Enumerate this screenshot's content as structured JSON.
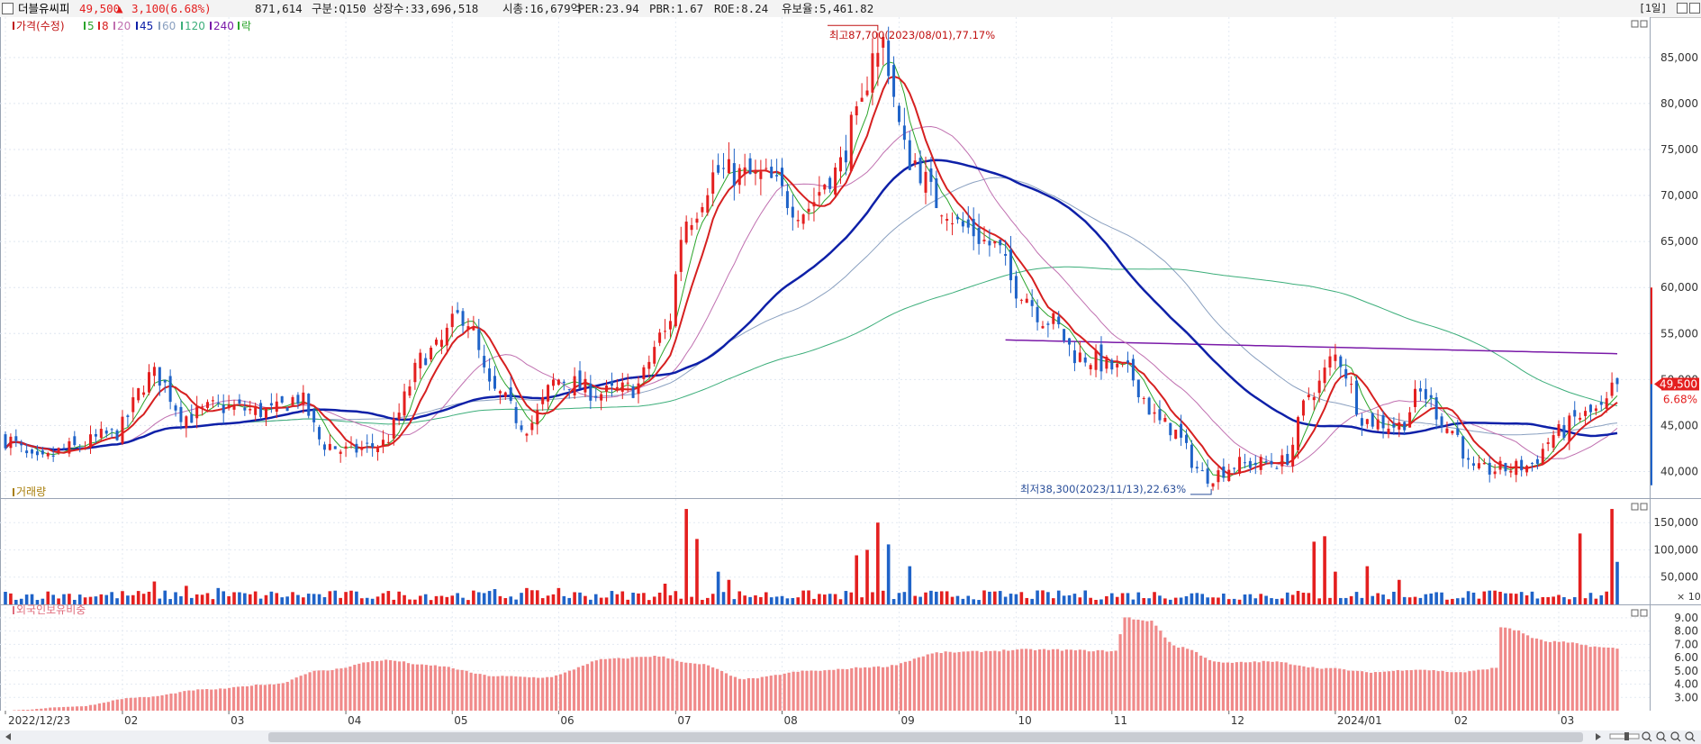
{
  "header": {
    "stock_name": "더블유씨피",
    "price": "49,500",
    "change_arrow": "▲",
    "change": "3,100",
    "change_pct": "(6.68%)",
    "volume": "871,614",
    "market": "구분:Q150",
    "shares": "상장수:33,696,518",
    "market_cap": "시총:16,679억",
    "per": "PER:23.94",
    "pbr": "PBR:1.67",
    "roe": "ROE:8.24",
    "float": "유보율:5,461.82",
    "period": "[1일]"
  },
  "colors": {
    "up": "#e41f1f",
    "down": "#1f63c8",
    "ma5": "#2aa42a",
    "ma8": "#d62020",
    "ma20": "#c070b0",
    "ma45": "#0e20a8",
    "ma60": "#8aa0c0",
    "ma120": "#3cae7a",
    "ma240": "#7a1aa8",
    "foreign_bar": "#f08a8a"
  },
  "chart_data": [
    {
      "type": "candlestick",
      "legend": [
        "가격(수정)",
        "5",
        "8",
        "20",
        "45",
        "60",
        "120",
        "240",
        "락"
      ],
      "x_ticks": [
        "2022/12/23",
        "02",
        "03",
        "04",
        "05",
        "06",
        "07",
        "08",
        "09",
        "10",
        "11",
        "12",
        "2024/01",
        "02",
        "03"
      ],
      "y_ticks": [
        "85,000",
        "80,000",
        "75,000",
        "70,000",
        "65,000",
        "60,000",
        "55,000",
        "50,000",
        "45,000",
        "40,000"
      ],
      "ylim": [
        37500,
        89000
      ],
      "price_anchors": [
        [
          0,
          43500
        ],
        [
          6,
          41000
        ],
        [
          12,
          42500
        ],
        [
          20,
          44000
        ],
        [
          28,
          50500
        ],
        [
          34,
          46000
        ],
        [
          40,
          47000
        ],
        [
          50,
          46500
        ],
        [
          55,
          48000
        ],
        [
          60,
          43000
        ],
        [
          64,
          42200
        ],
        [
          70,
          42800
        ],
        [
          80,
          53000
        ],
        [
          86,
          57000
        ],
        [
          92,
          48500
        ],
        [
          98,
          45000
        ],
        [
          104,
          50000
        ],
        [
          112,
          48500
        ],
        [
          118,
          49000
        ],
        [
          124,
          55000
        ],
        [
          128,
          67500
        ],
        [
          134,
          72500
        ],
        [
          142,
          72000
        ],
        [
          150,
          68500
        ],
        [
          156,
          72500
        ],
        [
          160,
          78000
        ],
        [
          164,
          87700
        ],
        [
          170,
          74000
        ],
        [
          176,
          69000
        ],
        [
          180,
          66500
        ],
        [
          186,
          64500
        ],
        [
          190,
          60000
        ],
        [
          196,
          56500
        ],
        [
          202,
          52500
        ],
        [
          210,
          51000
        ],
        [
          218,
          45000
        ],
        [
          226,
          39500
        ],
        [
          232,
          40800
        ],
        [
          240,
          41000
        ],
        [
          246,
          49000
        ],
        [
          250,
          52500
        ],
        [
          256,
          45500
        ],
        [
          262,
          45000
        ],
        [
          266,
          48500
        ],
        [
          272,
          44500
        ],
        [
          276,
          40000
        ],
        [
          282,
          40300
        ],
        [
          286,
          40600
        ],
        [
          292,
          44200
        ],
        [
          296,
          46000
        ],
        [
          300,
          46600
        ],
        [
          303,
          49500
        ]
      ],
      "annotations": {
        "high": "최고87,700(2023/08/01),77.17%",
        "low": "최저38,300(2023/11/13),22.63%",
        "last_price": "49,500",
        "last_pct": "6.68%"
      }
    },
    {
      "type": "bar",
      "title": "거래량",
      "y_ticks": [
        "150,000",
        "100,000",
        "50,000"
      ],
      "scale_note": "× 10",
      "ylim": [
        0,
        185000
      ]
    },
    {
      "type": "bar",
      "title": "외국인보유비중",
      "y_ticks": [
        "9.00",
        "8.00",
        "7.00",
        "6.00",
        "5.00",
        "4.00",
        "3.00"
      ],
      "ylim": [
        2.0,
        9.6
      ],
      "anchors": [
        [
          0,
          2.0
        ],
        [
          15,
          2.3
        ],
        [
          30,
          3.0
        ],
        [
          45,
          3.6
        ],
        [
          60,
          4.0
        ],
        [
          70,
          5.0
        ],
        [
          85,
          5.8
        ],
        [
          95,
          5.4
        ],
        [
          110,
          4.6
        ],
        [
          120,
          4.5
        ],
        [
          135,
          5.9
        ],
        [
          145,
          6.1
        ],
        [
          155,
          5.5
        ],
        [
          165,
          4.4
        ],
        [
          180,
          5.0
        ],
        [
          195,
          5.3
        ],
        [
          210,
          6.4
        ],
        [
          230,
          6.6
        ],
        [
          248,
          6.5
        ],
        [
          250,
          9.0
        ],
        [
          255,
          8.8
        ],
        [
          262,
          6.8
        ],
        [
          272,
          5.6
        ],
        [
          282,
          5.7
        ],
        [
          295,
          5.2
        ],
        [
          305,
          4.9
        ],
        [
          315,
          5.1
        ],
        [
          325,
          4.9
        ],
        [
          333,
          5.2
        ],
        [
          334,
          8.3
        ],
        [
          345,
          7.2
        ],
        [
          360,
          6.7
        ]
      ]
    }
  ]
}
